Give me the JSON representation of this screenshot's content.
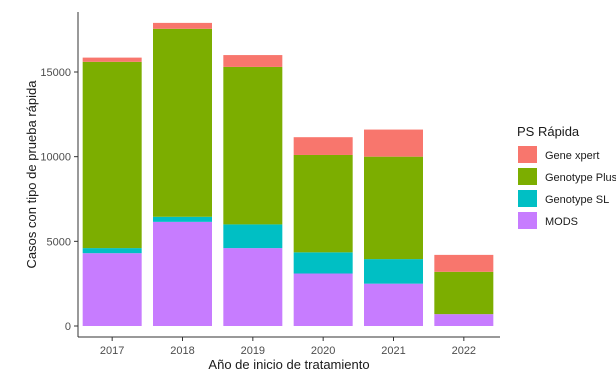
{
  "chart_data": {
    "type": "bar",
    "stacked": true,
    "title": "",
    "xlabel": "Año de inicio de tratamiento",
    "ylabel": "Casos con tipo de prueba rápida",
    "categories": [
      "2017",
      "2018",
      "2019",
      "2020",
      "2021",
      "2022"
    ],
    "ylim": [
      0,
      18500
    ],
    "yticks": [
      0,
      5000,
      10000,
      15000
    ],
    "ytick_labels": [
      "0",
      "5000",
      "10000",
      "15000"
    ],
    "grid": false,
    "legend": {
      "title": "PS Rápida",
      "position": "right",
      "entries": [
        "Gene xpert",
        "Genotype Plus",
        "Genotype SL",
        "MODS"
      ]
    },
    "series": [
      {
        "name": "MODS",
        "color": "#C77CFF",
        "values": [
          4300,
          6150,
          4600,
          3100,
          2500,
          700
        ]
      },
      {
        "name": "Genotype SL",
        "color": "#00BFC4",
        "values": [
          300,
          300,
          1400,
          1250,
          1450,
          0
        ]
      },
      {
        "name": "Genotype Plus",
        "color": "#7CAE00",
        "values": [
          11000,
          11100,
          9300,
          5750,
          6050,
          2500
        ]
      },
      {
        "name": "Gene xpert",
        "color": "#F8766D",
        "values": [
          250,
          350,
          700,
          1050,
          1600,
          1000
        ]
      }
    ]
  }
}
